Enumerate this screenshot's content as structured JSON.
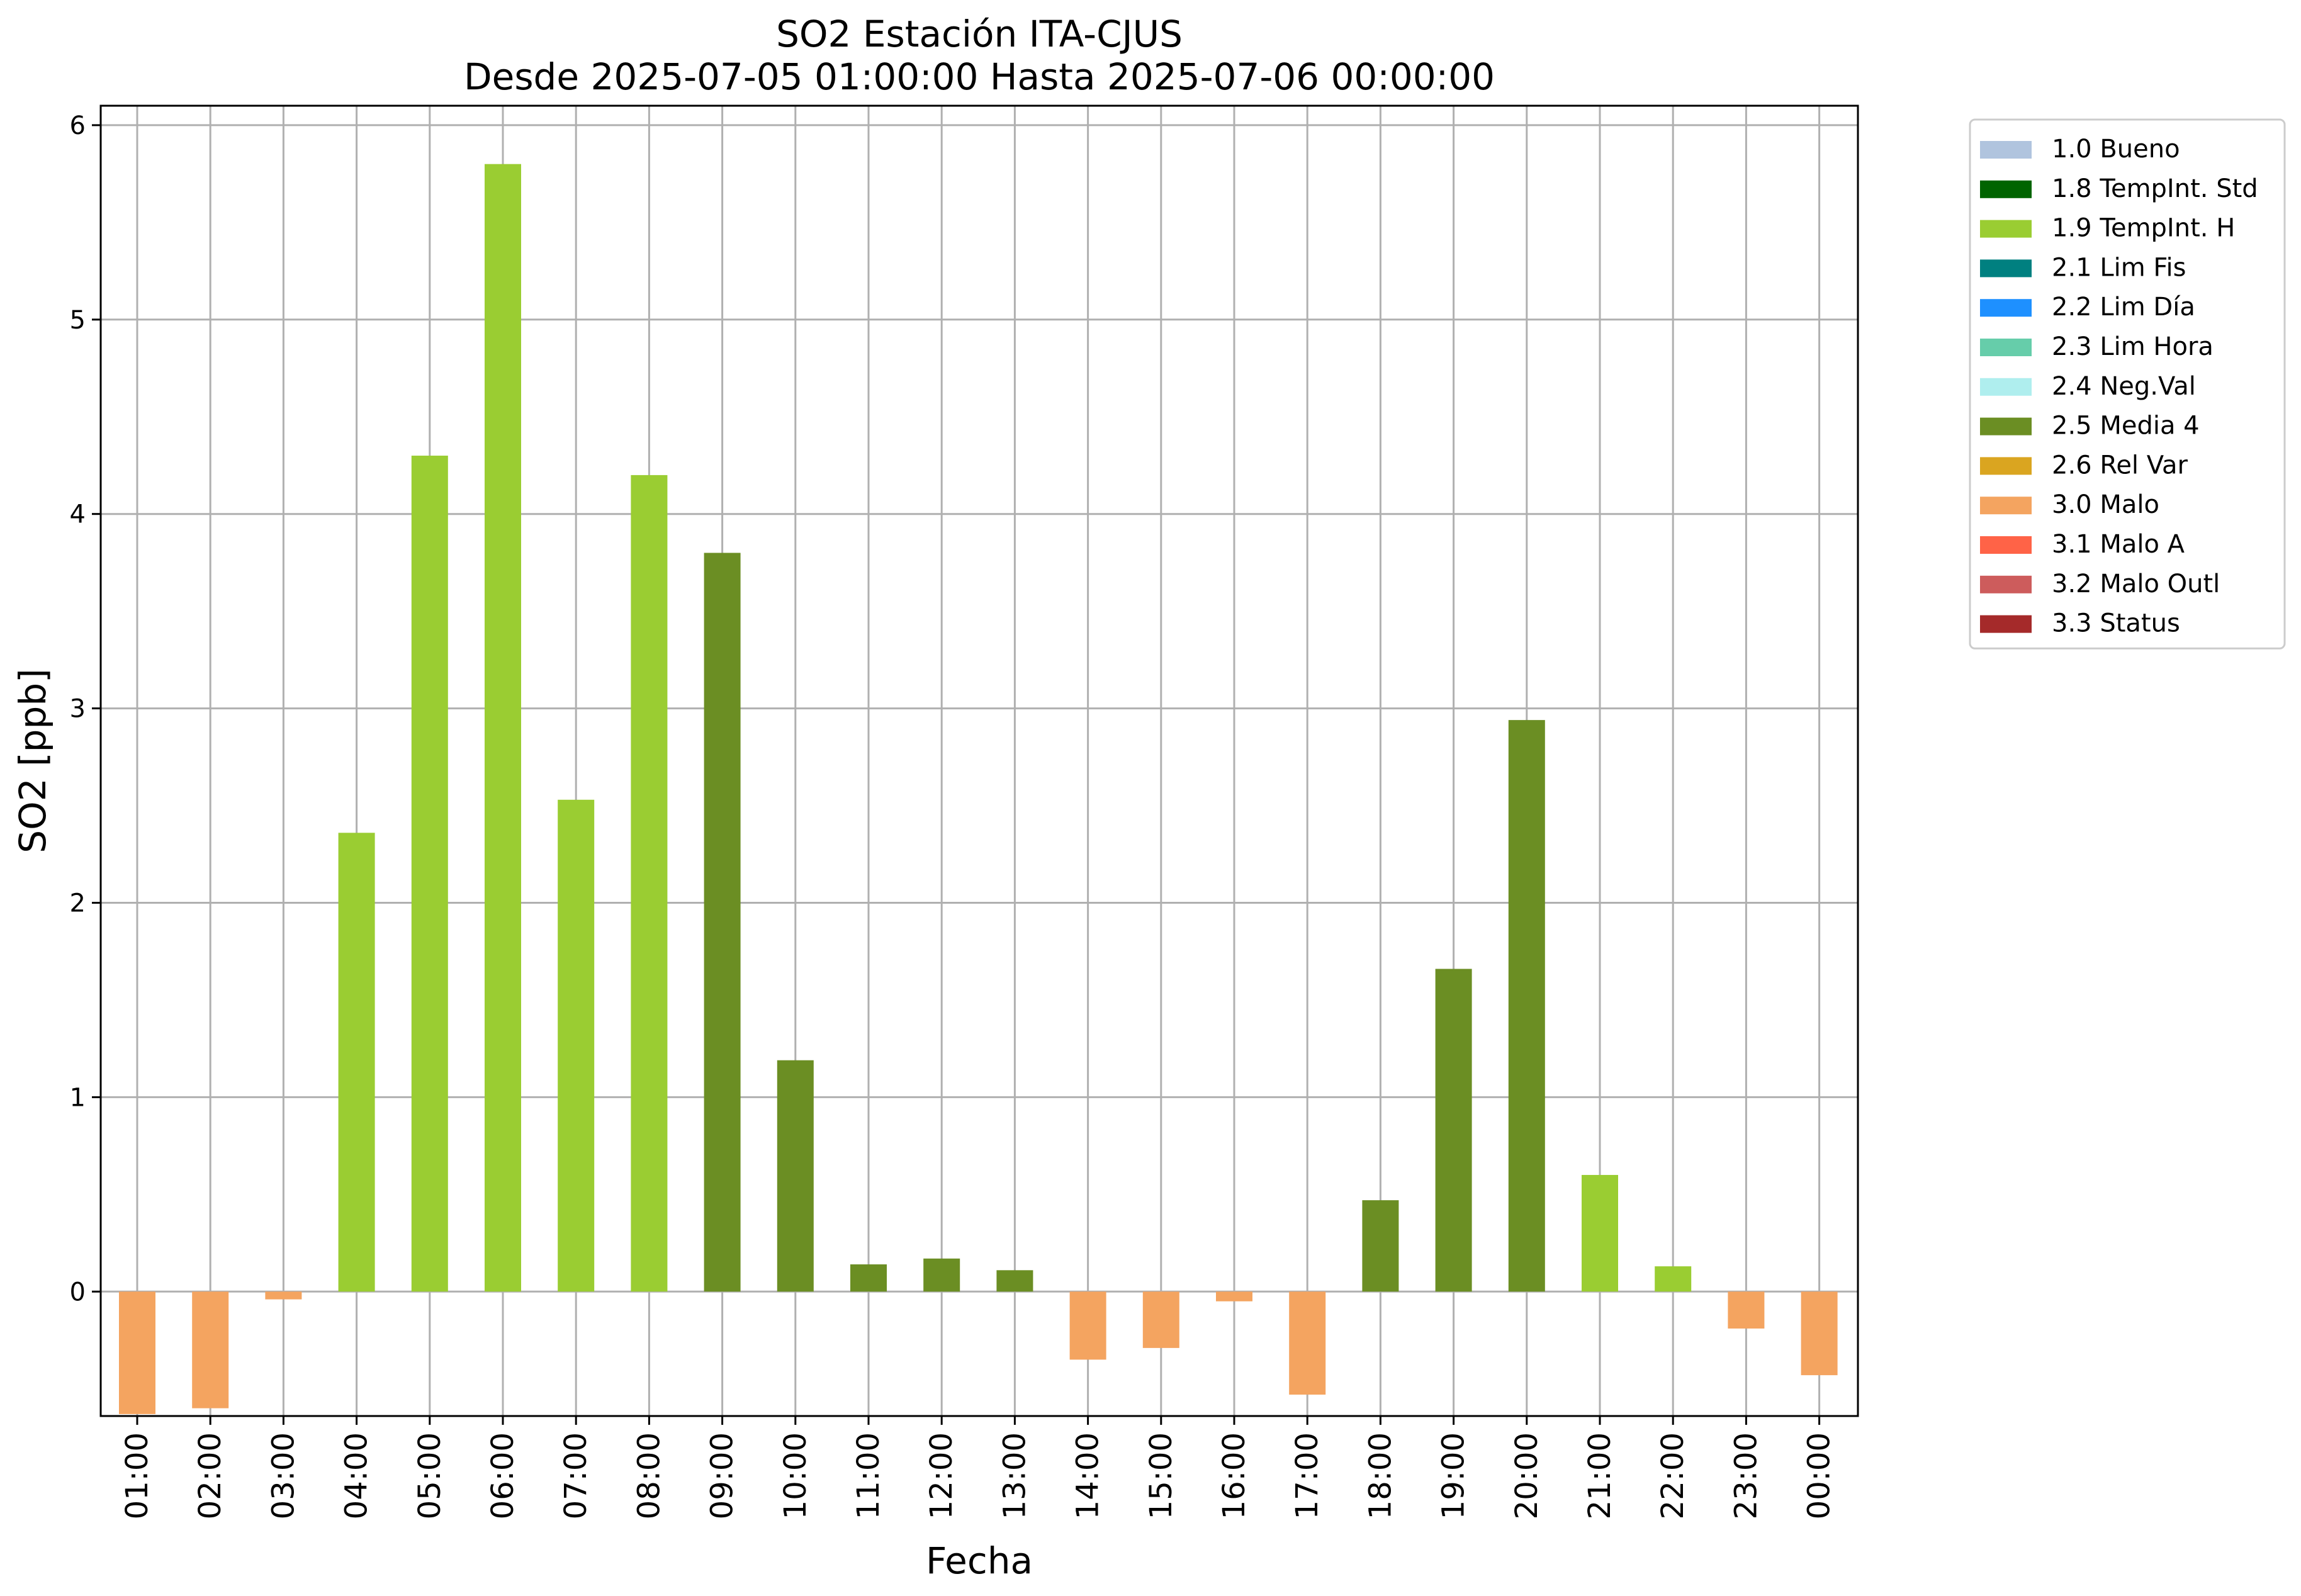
{
  "chart_data": {
    "type": "bar",
    "title": "SO2 Estación ITA-CJUS",
    "subtitle": "Desde 2025-07-05 01:00:00 Hasta 2025-07-06 00:00:00",
    "xlabel": "Fecha",
    "ylabel": "SO2 [ppb]",
    "ylim": [
      -0.64,
      6.1
    ],
    "yticks": [
      0,
      1,
      2,
      3,
      4,
      5,
      6
    ],
    "grid": true,
    "legend_position": "outside-top-right",
    "categories": [
      "01:00",
      "02:00",
      "03:00",
      "04:00",
      "05:00",
      "06:00",
      "07:00",
      "08:00",
      "09:00",
      "10:00",
      "11:00",
      "12:00",
      "13:00",
      "14:00",
      "15:00",
      "16:00",
      "17:00",
      "18:00",
      "19:00",
      "20:00",
      "21:00",
      "22:00",
      "23:00",
      "00:00"
    ],
    "values": [
      -0.63,
      -0.6,
      -0.04,
      2.36,
      4.3,
      5.8,
      2.53,
      4.2,
      3.8,
      1.19,
      0.14,
      0.17,
      0.11,
      -0.35,
      -0.29,
      -0.05,
      -0.53,
      0.47,
      1.66,
      2.94,
      0.6,
      0.13,
      -0.19,
      -0.43
    ],
    "flags": [
      "3.0 Malo",
      "3.0 Malo",
      "3.0 Malo",
      "1.9 TempInt. H",
      "1.9 TempInt. H",
      "1.9 TempInt. H",
      "1.9 TempInt. H",
      "1.9 TempInt. H",
      "2.5 Media 4",
      "2.5 Media 4",
      "2.5 Media 4",
      "2.5 Media 4",
      "2.5 Media 4",
      "3.0 Malo",
      "3.0 Malo",
      "3.0 Malo",
      "3.0 Malo",
      "2.5 Media 4",
      "2.5 Media 4",
      "2.5 Media 4",
      "1.9 TempInt. H",
      "1.9 TempInt. H",
      "3.0 Malo",
      "3.0 Malo"
    ],
    "legend": [
      {
        "label": "1.0 Bueno",
        "color": "#b0c4de"
      },
      {
        "label": "1.8 TempInt. Std",
        "color": "#006400"
      },
      {
        "label": "1.9 TempInt. H",
        "color": "#9acd32"
      },
      {
        "label": "2.1 Lim Fis",
        "color": "#008080"
      },
      {
        "label": "2.2 Lim Día",
        "color": "#1e90ff"
      },
      {
        "label": "2.3 Lim Hora",
        "color": "#66cdaa"
      },
      {
        "label": "2.4 Neg.Val",
        "color": "#afeeee"
      },
      {
        "label": "2.5 Media 4",
        "color": "#6b8e23"
      },
      {
        "label": "2.6 Rel Var",
        "color": "#daa520"
      },
      {
        "label": "3.0 Malo",
        "color": "#f4a460"
      },
      {
        "label": "3.1 Malo A",
        "color": "#ff6347"
      },
      {
        "label": "3.2 Malo Outl",
        "color": "#cd5c5c"
      },
      {
        "label": "3.3 Status",
        "color": "#a52a2a"
      }
    ]
  }
}
